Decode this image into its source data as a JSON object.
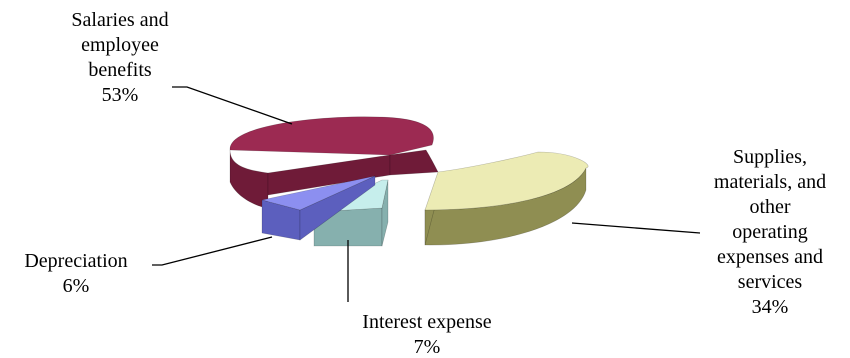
{
  "chart_data": {
    "type": "pie",
    "variant": "3d-exploded",
    "categories": [
      "Salaries and employee benefits",
      "Supplies, materials, and other operating expenses and services",
      "Interest expense",
      "Depreciation"
    ],
    "values": [
      53,
      34,
      7,
      6
    ],
    "unit": "%",
    "labels": [
      {
        "lines": [
          "Salaries and",
          "employee",
          "benefits"
        ],
        "pct": "53%"
      },
      {
        "lines": [
          "Supplies,",
          "materials, and",
          "other",
          "operating",
          "expenses and",
          "services"
        ],
        "pct": "34%"
      },
      {
        "lines": [
          "Interest expense"
        ],
        "pct": "7%"
      },
      {
        "lines": [
          "Depreciation"
        ],
        "pct": "6%"
      }
    ],
    "colors": {
      "salaries_top": "#9C2A52",
      "salaries_side": "#6F1B38",
      "supplies_top": "#ECEBB4",
      "supplies_side": "#8F8E52",
      "interest_top": "#C6EEEC",
      "interest_side": "#86B0AE",
      "depreciation_top": "#8C8FF0",
      "depreciation_side": "#5C5FBE",
      "leader": "#000000"
    },
    "legend": "none",
    "grid": false
  }
}
